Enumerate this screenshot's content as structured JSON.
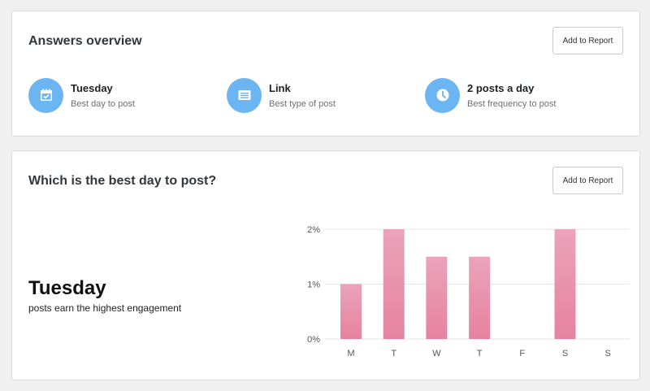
{
  "overview": {
    "title": "Answers overview",
    "add_label": "Add to Report",
    "answers": [
      {
        "icon": "calendar-icon",
        "title": "Tuesday",
        "sub": "Best day to post"
      },
      {
        "icon": "post-type-icon",
        "title": "Link",
        "sub": "Best type of post"
      },
      {
        "icon": "clock-icon",
        "title": "2 posts a day",
        "sub": "Best frequency to post"
      }
    ]
  },
  "bestday": {
    "title": "Which is the best day to post?",
    "add_label": "Add to Report",
    "big": "Tuesday",
    "sub": "posts earn the highest engagement"
  },
  "colors": {
    "accent_blue": "#6bb5f3",
    "bar_top": "#eba3bb",
    "bar_bottom": "#e6829f"
  },
  "chart_data": {
    "type": "bar",
    "categories": [
      "M",
      "T",
      "W",
      "T",
      "F",
      "S",
      "S"
    ],
    "values": [
      1,
      2,
      1.5,
      1.5,
      0,
      2,
      0
    ],
    "ylim": [
      0,
      2
    ],
    "yticks": [
      0,
      1,
      2
    ],
    "ytick_labels": [
      "0%",
      "1%",
      "2%"
    ],
    "grid": true
  }
}
